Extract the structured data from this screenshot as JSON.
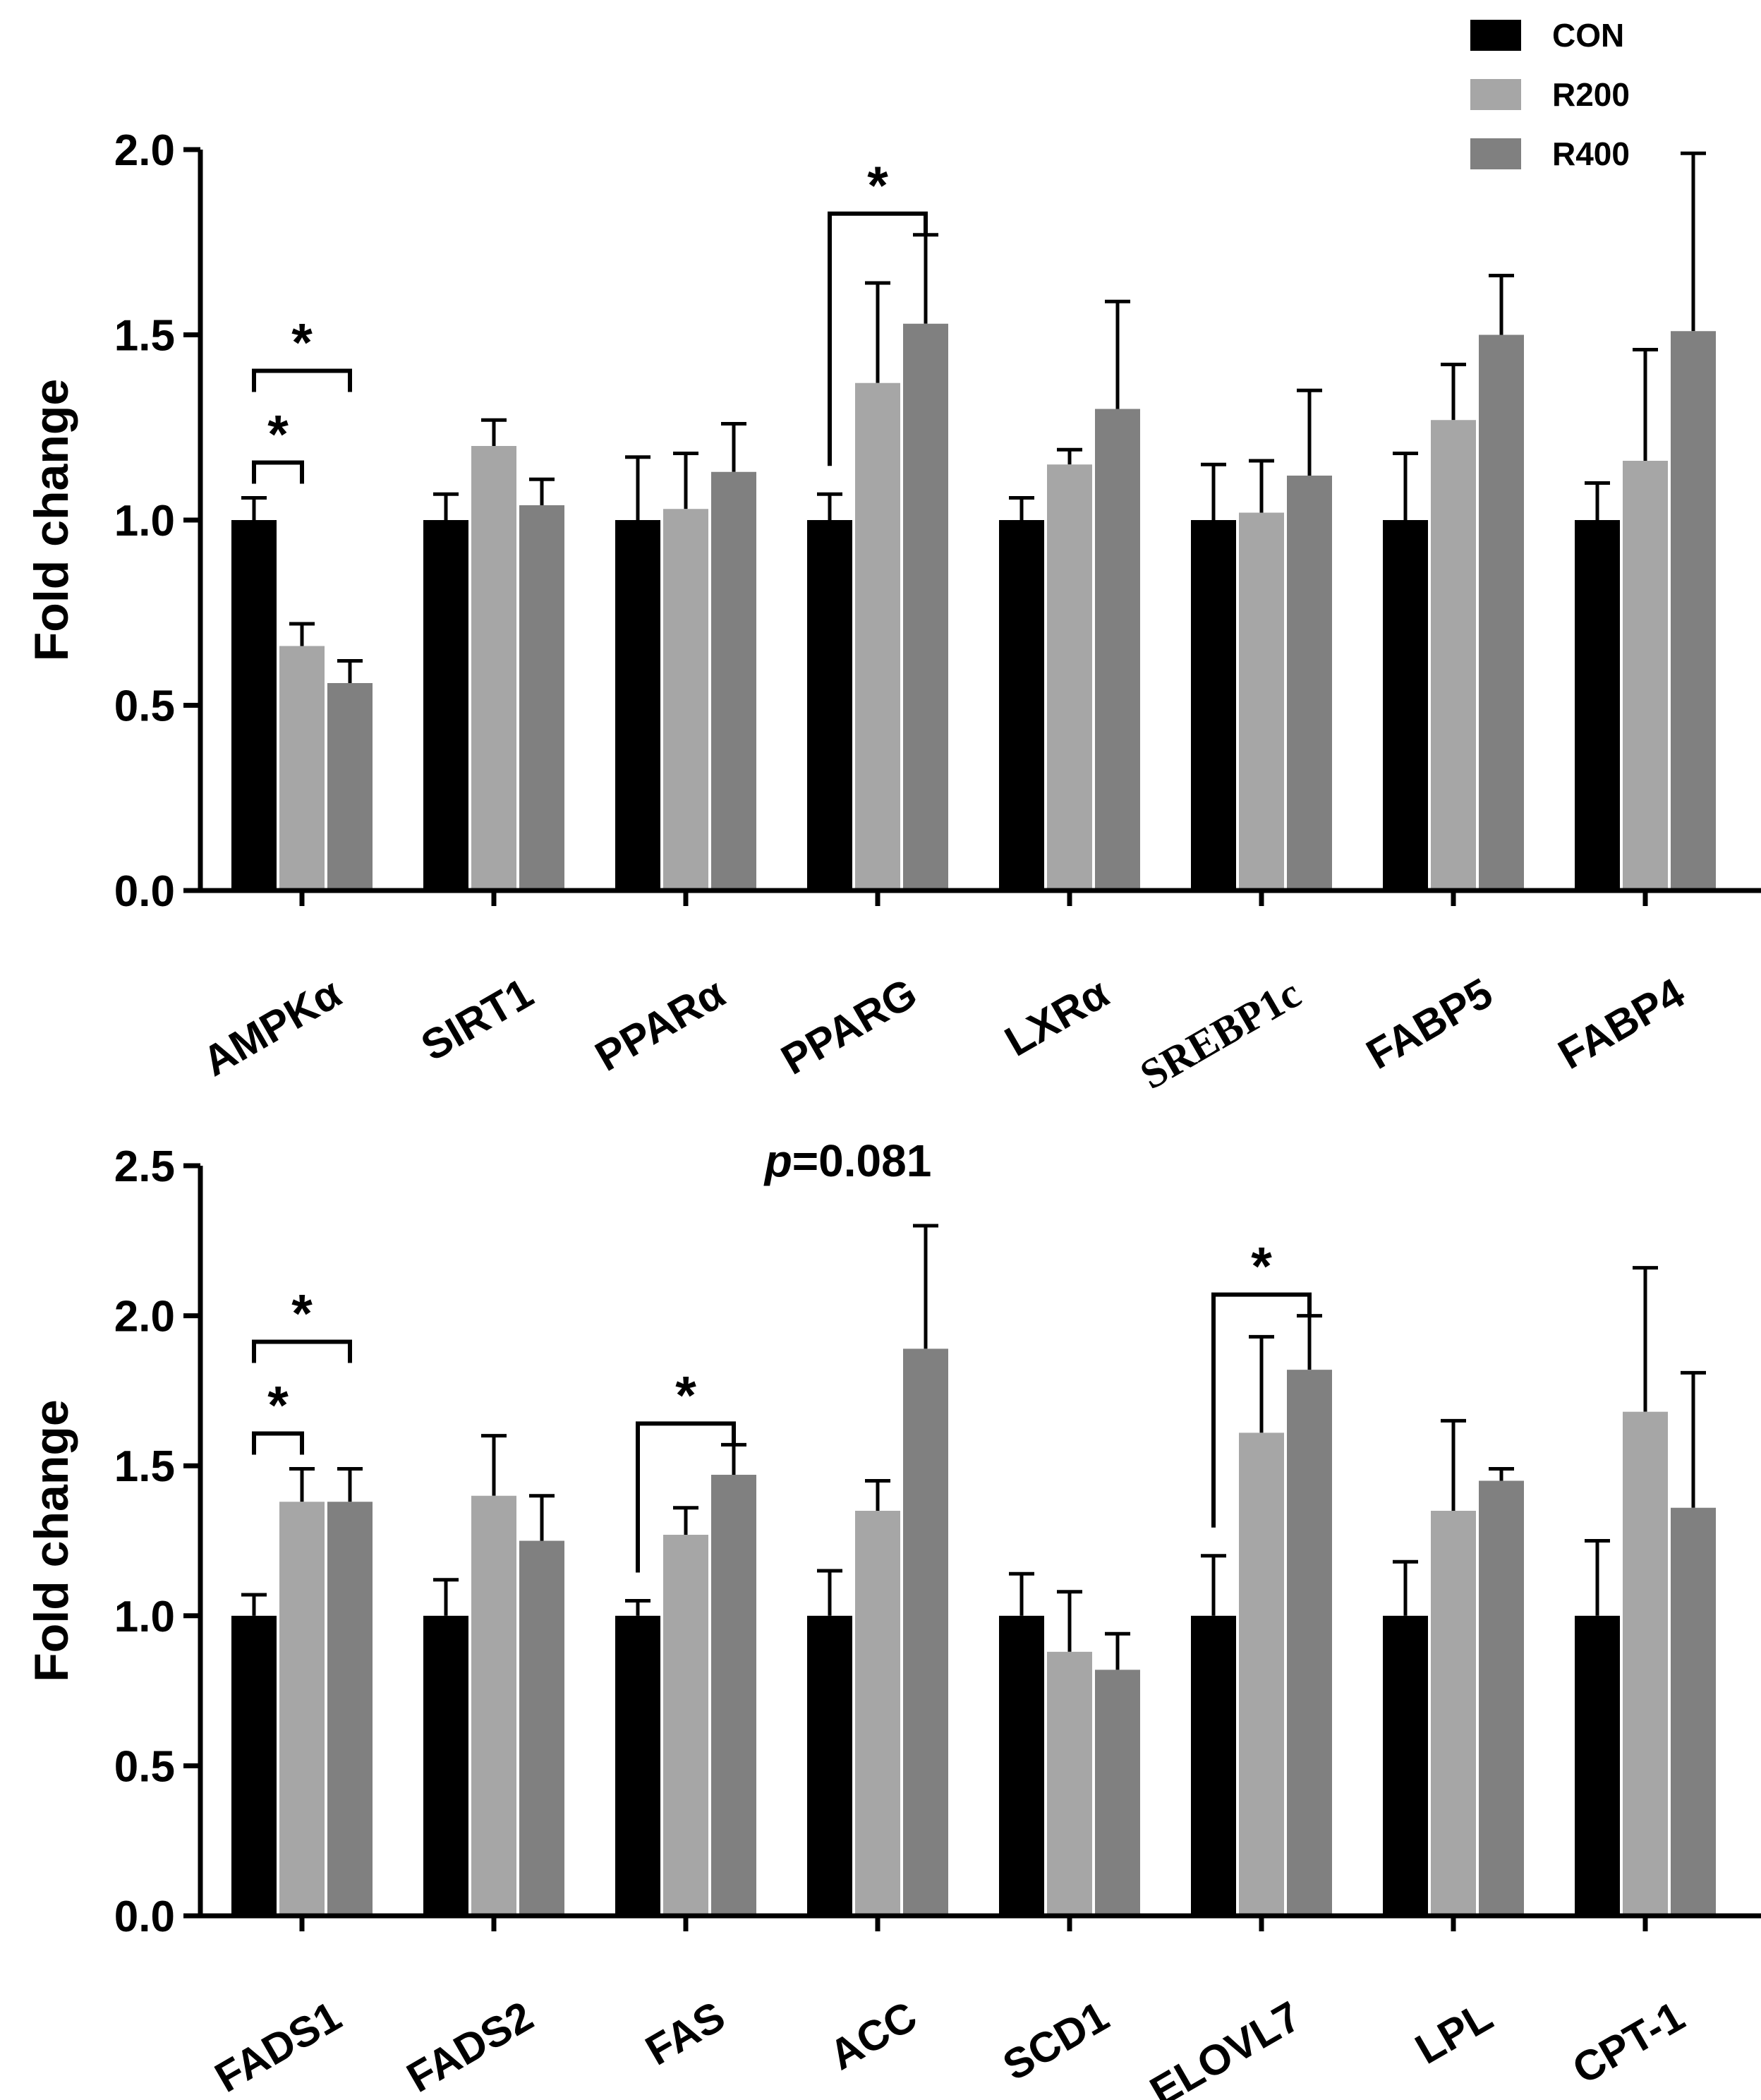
{
  "chart_data": [
    {
      "type": "bar",
      "title": "",
      "xlabel": "",
      "ylabel": "Fold change",
      "ylim": [
        0,
        2.0
      ],
      "yticks": [
        "0.0",
        "0.5",
        "1.0",
        "1.5",
        "2.0"
      ],
      "categories": [
        "AMPKα",
        "SIRT1",
        "PPARα",
        "PPARG",
        "LXRα",
        "SREBP1c",
        "FABP5",
        "FABP4"
      ],
      "series": [
        {
          "name": "CON",
          "color": "#000000",
          "values": [
            1.0,
            1.0,
            1.0,
            1.0,
            1.0,
            1.0,
            1.0,
            1.0
          ],
          "errors": [
            0.06,
            0.07,
            0.17,
            0.07,
            0.06,
            0.15,
            0.18,
            0.1
          ]
        },
        {
          "name": "R200",
          "color": "#a6a6a6",
          "values": [
            0.66,
            1.2,
            1.03,
            1.37,
            1.15,
            1.02,
            1.27,
            1.16
          ],
          "errors": [
            0.06,
            0.07,
            0.15,
            0.27,
            0.04,
            0.14,
            0.15,
            0.3
          ]
        },
        {
          "name": "R400",
          "color": "#808080",
          "values": [
            0.56,
            1.04,
            1.13,
            1.53,
            1.3,
            1.12,
            1.5,
            1.51
          ],
          "errors": [
            0.06,
            0.07,
            0.13,
            0.24,
            0.29,
            0.23,
            0.16,
            0.48
          ]
        }
      ],
      "annotations": [
        {
          "category": "AMPKα",
          "from_series": 0,
          "to_series": 1,
          "label": "*"
        },
        {
          "category": "AMPKα",
          "from_series": 0,
          "to_series": 2,
          "label": "*"
        },
        {
          "category": "PPARG",
          "from_series": 0,
          "to_series": 2,
          "label": "*"
        }
      ]
    },
    {
      "type": "bar",
      "title": "",
      "xlabel": "",
      "ylabel": "Fold change",
      "ylim": [
        0,
        2.5
      ],
      "yticks": [
        "0.0",
        "0.5",
        "1.0",
        "1.5",
        "2.0",
        "2.5"
      ],
      "categories": [
        "FADS1",
        "FADS2",
        "FAS",
        "ACC",
        "SCD1",
        "ELOVL7",
        "LPL",
        "CPT-1"
      ],
      "series": [
        {
          "name": "CON",
          "color": "#000000",
          "values": [
            1.0,
            1.0,
            1.0,
            1.0,
            1.0,
            1.0,
            1.0,
            1.0
          ],
          "errors": [
            0.07,
            0.12,
            0.05,
            0.15,
            0.14,
            0.2,
            0.18,
            0.25
          ]
        },
        {
          "name": "R200",
          "color": "#a6a6a6",
          "values": [
            1.38,
            1.4,
            1.27,
            1.35,
            0.88,
            1.61,
            1.35,
            1.68
          ],
          "errors": [
            0.11,
            0.2,
            0.09,
            0.1,
            0.2,
            0.32,
            0.3,
            0.48
          ]
        },
        {
          "name": "R400",
          "color": "#808080",
          "values": [
            1.38,
            1.25,
            1.47,
            1.89,
            0.82,
            1.82,
            1.45,
            1.36
          ],
          "errors": [
            0.11,
            0.15,
            0.1,
            0.41,
            0.12,
            0.18,
            0.04,
            0.45
          ]
        }
      ],
      "annotations": [
        {
          "category": "FADS1",
          "from_series": 0,
          "to_series": 1,
          "label": "*"
        },
        {
          "category": "FADS1",
          "from_series": 0,
          "to_series": 2,
          "label": "*"
        },
        {
          "category": "FAS",
          "from_series": 0,
          "to_series": 2,
          "label": "*"
        },
        {
          "category": "ELOVL7",
          "from_series": 0,
          "to_series": 2,
          "label": "*"
        },
        {
          "category": "ACC",
          "series": 2,
          "label": "p=0.081",
          "label_prefix": "p",
          "label_rest": "=0.081"
        }
      ]
    }
  ],
  "legend": {
    "position": "top-right",
    "items": [
      {
        "label": "CON",
        "color": "#000000"
      },
      {
        "label": "R200",
        "color": "#a6a6a6"
      },
      {
        "label": "R400",
        "color": "#808080"
      }
    ]
  }
}
